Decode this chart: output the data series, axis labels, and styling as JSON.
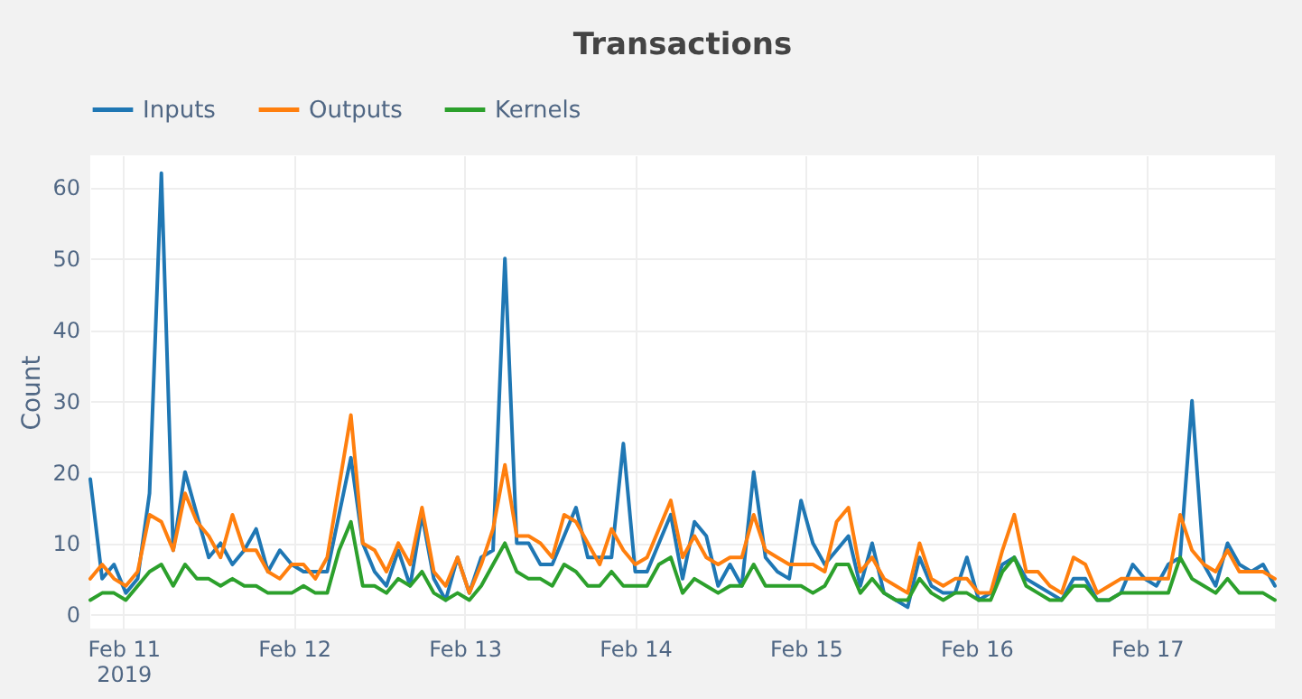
{
  "chart_data": {
    "type": "line",
    "title": "Transactions",
    "ylabel": "Count",
    "x": [
      "2019-02-10T19:20",
      "2019-02-10T21:00",
      "2019-02-10T22:40",
      "2019-02-11T00:20",
      "2019-02-11T02:00",
      "2019-02-11T03:40",
      "2019-02-11T05:20",
      "2019-02-11T07:00",
      "2019-02-11T08:40",
      "2019-02-11T10:20",
      "2019-02-11T12:00",
      "2019-02-11T13:40",
      "2019-02-11T15:20",
      "2019-02-11T17:00",
      "2019-02-11T18:40",
      "2019-02-11T20:20",
      "2019-02-11T22:00",
      "2019-02-11T23:40",
      "2019-02-12T01:20",
      "2019-02-12T03:00",
      "2019-02-12T04:40",
      "2019-02-12T06:20",
      "2019-02-12T08:00",
      "2019-02-12T09:40",
      "2019-02-12T11:20",
      "2019-02-12T13:00",
      "2019-02-12T14:40",
      "2019-02-12T16:20",
      "2019-02-12T18:00",
      "2019-02-12T19:40",
      "2019-02-12T21:20",
      "2019-02-12T23:00",
      "2019-02-13T00:40",
      "2019-02-13T02:20",
      "2019-02-13T04:00",
      "2019-02-13T05:40",
      "2019-02-13T07:20",
      "2019-02-13T09:00",
      "2019-02-13T10:40",
      "2019-02-13T12:20",
      "2019-02-13T14:00",
      "2019-02-13T15:40",
      "2019-02-13T17:20",
      "2019-02-13T19:00",
      "2019-02-13T20:40",
      "2019-02-13T22:20",
      "2019-02-14T00:00",
      "2019-02-14T01:40",
      "2019-02-14T03:20",
      "2019-02-14T05:00",
      "2019-02-14T06:40",
      "2019-02-14T08:20",
      "2019-02-14T10:00",
      "2019-02-14T11:40",
      "2019-02-14T13:20",
      "2019-02-14T15:00",
      "2019-02-14T16:40",
      "2019-02-14T18:20",
      "2019-02-14T20:00",
      "2019-02-14T21:40",
      "2019-02-14T23:20",
      "2019-02-15T01:00",
      "2019-02-15T02:40",
      "2019-02-15T04:20",
      "2019-02-15T06:00",
      "2019-02-15T07:40",
      "2019-02-15T09:20",
      "2019-02-15T11:00",
      "2019-02-15T12:40",
      "2019-02-15T14:20",
      "2019-02-15T16:00",
      "2019-02-15T17:40",
      "2019-02-15T19:20",
      "2019-02-15T21:00",
      "2019-02-15T22:40",
      "2019-02-16T00:20",
      "2019-02-16T02:00",
      "2019-02-16T03:40",
      "2019-02-16T05:20",
      "2019-02-16T07:00",
      "2019-02-16T08:40",
      "2019-02-16T10:20",
      "2019-02-16T12:00",
      "2019-02-16T13:40",
      "2019-02-16T15:20",
      "2019-02-16T17:00",
      "2019-02-16T18:40",
      "2019-02-16T20:20",
      "2019-02-16T22:00",
      "2019-02-16T23:40",
      "2019-02-17T01:20",
      "2019-02-17T03:00",
      "2019-02-17T04:40",
      "2019-02-17T06:20",
      "2019-02-17T08:00",
      "2019-02-17T09:40",
      "2019-02-17T11:20",
      "2019-02-17T13:00",
      "2019-02-17T14:40",
      "2019-02-17T16:20",
      "2019-02-17T18:00"
    ],
    "series": [
      {
        "name": "Inputs",
        "color": "#1f77b4",
        "values": [
          19,
          5,
          7,
          3,
          5,
          17,
          62,
          9,
          20,
          14,
          8,
          10,
          7,
          9,
          12,
          6,
          9,
          7,
          6,
          6,
          6,
          14,
          22,
          10,
          6,
          4,
          9,
          4,
          14,
          5,
          2,
          8,
          3,
          8,
          9,
          50,
          10,
          10,
          7,
          7,
          11,
          15,
          8,
          8,
          8,
          24,
          6,
          6,
          10,
          14,
          5,
          13,
          11,
          4,
          7,
          4,
          20,
          8,
          6,
          5,
          16,
          10,
          7,
          9,
          11,
          4,
          10,
          3,
          2,
          1,
          8,
          4,
          3,
          3,
          8,
          2,
          3,
          7,
          8,
          5,
          4,
          3,
          2,
          5,
          5,
          2,
          2,
          3,
          7,
          5,
          4,
          7,
          8,
          30,
          7,
          4,
          10,
          7,
          6,
          7,
          4
        ]
      },
      {
        "name": "Outputs",
        "color": "#ff7f0e",
        "values": [
          5,
          7,
          5,
          4,
          6,
          14,
          13,
          9,
          17,
          13,
          11,
          8,
          14,
          9,
          9,
          6,
          5,
          7,
          7,
          5,
          8,
          18,
          28,
          10,
          9,
          6,
          10,
          7,
          15,
          6,
          4,
          8,
          3,
          7,
          12,
          21,
          11,
          11,
          10,
          8,
          14,
          13,
          10,
          7,
          12,
          9,
          7,
          8,
          12,
          16,
          8,
          11,
          8,
          7,
          8,
          8,
          14,
          9,
          8,
          7,
          7,
          7,
          6,
          13,
          15,
          6,
          8,
          5,
          4,
          3,
          10,
          5,
          4,
          5,
          5,
          3,
          3,
          9,
          14,
          6,
          6,
          4,
          3,
          8,
          7,
          3,
          4,
          5,
          5,
          5,
          5,
          5,
          14,
          9,
          7,
          6,
          9,
          6,
          6,
          6,
          5
        ]
      },
      {
        "name": "Kernels",
        "color": "#2ca02c",
        "values": [
          2,
          3,
          3,
          2,
          4,
          6,
          7,
          4,
          7,
          5,
          5,
          4,
          5,
          4,
          4,
          3,
          3,
          3,
          4,
          3,
          3,
          9,
          13,
          4,
          4,
          3,
          5,
          4,
          6,
          3,
          2,
          3,
          2,
          4,
          7,
          10,
          6,
          5,
          5,
          4,
          7,
          6,
          4,
          4,
          6,
          4,
          4,
          4,
          7,
          8,
          3,
          5,
          4,
          3,
          4,
          4,
          7,
          4,
          4,
          4,
          4,
          3,
          4,
          7,
          7,
          3,
          5,
          3,
          2,
          2,
          5,
          3,
          2,
          3,
          3,
          2,
          2,
          6,
          8,
          4,
          3,
          2,
          2,
          4,
          4,
          2,
          2,
          3,
          3,
          3,
          3,
          3,
          8,
          5,
          4,
          3,
          5,
          3,
          3,
          3,
          2
        ]
      }
    ],
    "xlim": [
      "2019-02-10T19:20",
      "2019-02-17T18:00"
    ],
    "xticks": [
      {
        "value": "2019-02-11",
        "label": "Feb 11\n2019"
      },
      {
        "value": "2019-02-12",
        "label": "Feb 12"
      },
      {
        "value": "2019-02-13",
        "label": "Feb 13"
      },
      {
        "value": "2019-02-14",
        "label": "Feb 14"
      },
      {
        "value": "2019-02-15",
        "label": "Feb 15"
      },
      {
        "value": "2019-02-16",
        "label": "Feb 16"
      },
      {
        "value": "2019-02-17",
        "label": "Feb 17"
      }
    ],
    "ylim": [
      -2,
      64.5
    ],
    "yticks": [
      0,
      10,
      20,
      30,
      40,
      50,
      60
    ],
    "grid": true,
    "legend": "top left",
    "marker": "none",
    "line_style": "solid"
  }
}
